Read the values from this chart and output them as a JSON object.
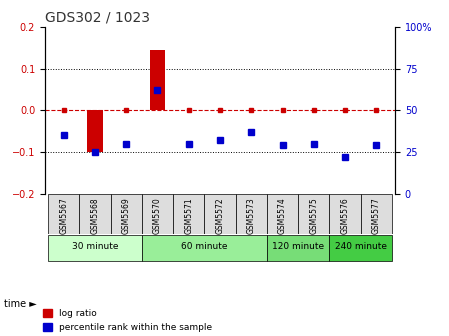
{
  "title": "GDS302 / 1023",
  "samples": [
    "GSM5567",
    "GSM5568",
    "GSM5569",
    "GSM5570",
    "GSM5571",
    "GSM5572",
    "GSM5573",
    "GSM5574",
    "GSM5575",
    "GSM5576",
    "GSM5577"
  ],
  "log_ratio": [
    0.003,
    -0.1,
    0.003,
    0.145,
    0.003,
    0.003,
    0.003,
    0.003,
    0.003,
    0.003,
    0.003
  ],
  "percentile_rank": [
    35,
    25,
    30,
    62,
    30,
    32,
    37,
    29,
    30,
    22,
    29
  ],
  "ylim_left": [
    -0.2,
    0.2
  ],
  "ylim_right": [
    0,
    100
  ],
  "yticks_left": [
    -0.2,
    -0.1,
    0.0,
    0.1,
    0.2
  ],
  "yticks_right": [
    0,
    25,
    50,
    75,
    100
  ],
  "ytick_labels_right": [
    "0",
    "25",
    "50",
    "75",
    "100%"
  ],
  "groups": [
    {
      "label": "30 minute",
      "samples": [
        "GSM5567",
        "GSM5568",
        "GSM5569"
      ],
      "color": "#ccffcc"
    },
    {
      "label": "60 minute",
      "samples": [
        "GSM5570",
        "GSM5571",
        "GSM5572",
        "GSM5573"
      ],
      "color": "#99ee99"
    },
    {
      "label": "120 minute",
      "samples": [
        "GSM5574",
        "GSM5575"
      ],
      "color": "#77dd77"
    },
    {
      "label": "240 minute",
      "samples": [
        "GSM5576",
        "GSM5577"
      ],
      "color": "#44cc44"
    }
  ],
  "bar_color": "#cc0000",
  "dot_color": "#0000cc",
  "zero_line_color": "#cc0000",
  "grid_color": "#000000",
  "bg_color": "#ffffff",
  "xlabel_color": "#000000",
  "ylabel_left_color": "#cc0000",
  "ylabel_right_color": "#0000cc"
}
